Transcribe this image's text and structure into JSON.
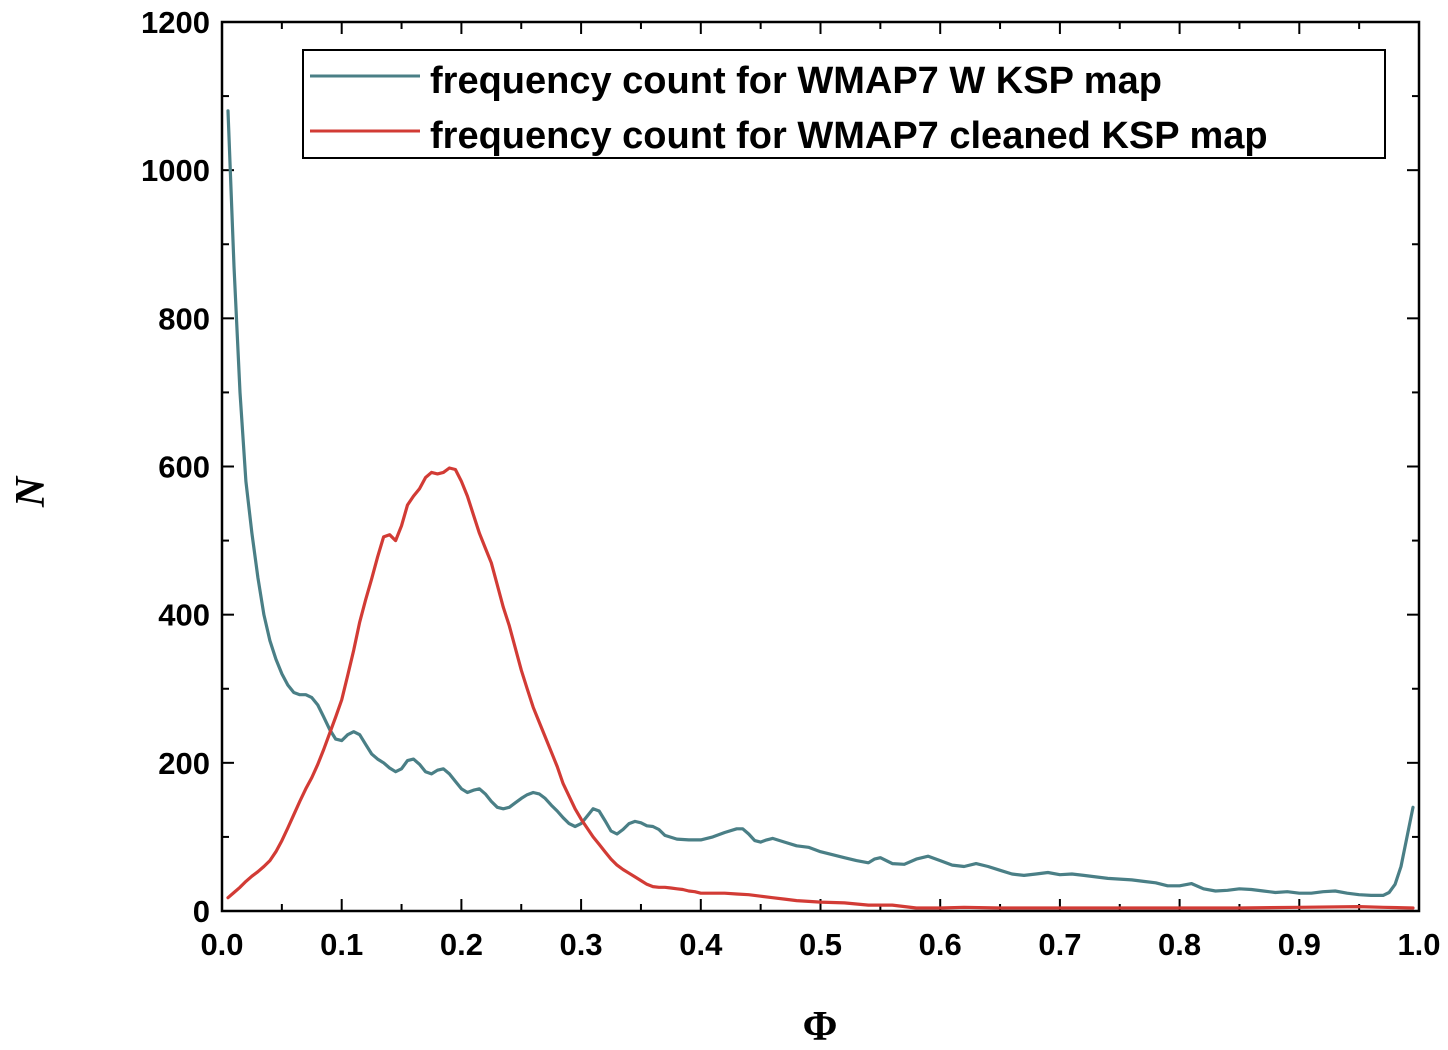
{
  "chart_data": {
    "type": "line",
    "title": "",
    "xlabel": "Φ",
    "ylabel": "N",
    "xlim": [
      0.0,
      1.0
    ],
    "ylim": [
      0,
      1200
    ],
    "xticks": [
      {
        "value": 0.0,
        "label": "0.0"
      },
      {
        "value": 0.1,
        "label": "0.1"
      },
      {
        "value": 0.2,
        "label": "0.2"
      },
      {
        "value": 0.3,
        "label": "0.3"
      },
      {
        "value": 0.4,
        "label": "0.4"
      },
      {
        "value": 0.5,
        "label": "0.5"
      },
      {
        "value": 0.6,
        "label": "0.6"
      },
      {
        "value": 0.7,
        "label": "0.7"
      },
      {
        "value": 0.8,
        "label": "0.8"
      },
      {
        "value": 0.9,
        "label": "0.9"
      },
      {
        "value": 1.0,
        "label": "1.0"
      }
    ],
    "yticks": [
      {
        "value": 0,
        "label": "0"
      },
      {
        "value": 200,
        "label": "200"
      },
      {
        "value": 400,
        "label": "400"
      },
      {
        "value": 600,
        "label": "600"
      },
      {
        "value": 800,
        "label": "800"
      },
      {
        "value": 1000,
        "label": "1000"
      },
      {
        "value": 1200,
        "label": "1200"
      }
    ],
    "legend_position": "top-right",
    "series": [
      {
        "name": "frequency count for WMAP7 W KSP map",
        "color": "#4a7f86",
        "x": [
          0.005,
          0.01,
          0.015,
          0.02,
          0.025,
          0.03,
          0.035,
          0.04,
          0.045,
          0.05,
          0.055,
          0.06,
          0.065,
          0.07,
          0.075,
          0.08,
          0.085,
          0.09,
          0.095,
          0.1,
          0.105,
          0.11,
          0.115,
          0.12,
          0.125,
          0.13,
          0.135,
          0.14,
          0.145,
          0.15,
          0.155,
          0.16,
          0.165,
          0.17,
          0.175,
          0.18,
          0.185,
          0.19,
          0.195,
          0.2,
          0.205,
          0.21,
          0.215,
          0.22,
          0.225,
          0.23,
          0.235,
          0.24,
          0.245,
          0.25,
          0.255,
          0.26,
          0.265,
          0.27,
          0.275,
          0.28,
          0.285,
          0.29,
          0.295,
          0.3,
          0.305,
          0.31,
          0.315,
          0.32,
          0.325,
          0.33,
          0.335,
          0.34,
          0.345,
          0.35,
          0.355,
          0.36,
          0.365,
          0.37,
          0.38,
          0.39,
          0.4,
          0.41,
          0.42,
          0.43,
          0.435,
          0.44,
          0.445,
          0.45,
          0.455,
          0.46,
          0.47,
          0.48,
          0.49,
          0.5,
          0.51,
          0.52,
          0.53,
          0.54,
          0.545,
          0.55,
          0.56,
          0.57,
          0.58,
          0.59,
          0.6,
          0.61,
          0.62,
          0.63,
          0.64,
          0.65,
          0.66,
          0.67,
          0.68,
          0.69,
          0.7,
          0.71,
          0.72,
          0.73,
          0.74,
          0.75,
          0.76,
          0.77,
          0.78,
          0.79,
          0.8,
          0.81,
          0.82,
          0.83,
          0.84,
          0.85,
          0.86,
          0.87,
          0.88,
          0.89,
          0.9,
          0.91,
          0.92,
          0.93,
          0.94,
          0.95,
          0.96,
          0.97,
          0.975,
          0.98,
          0.985,
          0.99,
          0.995
        ],
        "y": [
          1080,
          870,
          700,
          580,
          510,
          450,
          400,
          365,
          340,
          320,
          305,
          295,
          292,
          292,
          288,
          278,
          262,
          245,
          232,
          230,
          238,
          242,
          238,
          225,
          212,
          205,
          200,
          193,
          188,
          192,
          203,
          205,
          198,
          188,
          185,
          190,
          192,
          185,
          175,
          165,
          160,
          163,
          165,
          158,
          148,
          140,
          138,
          140,
          146,
          152,
          157,
          160,
          158,
          152,
          143,
          135,
          126,
          118,
          114,
          118,
          128,
          138,
          135,
          122,
          108,
          104,
          110,
          118,
          121,
          119,
          115,
          114,
          110,
          102,
          97,
          96,
          96,
          100,
          106,
          111,
          111,
          104,
          95,
          93,
          96,
          98,
          93,
          88,
          86,
          80,
          76,
          72,
          68,
          65,
          70,
          72,
          64,
          63,
          70,
          74,
          68,
          62,
          60,
          64,
          60,
          55,
          50,
          48,
          50,
          52,
          49,
          50,
          48,
          46,
          44,
          43,
          42,
          40,
          38,
          34,
          34,
          37,
          30,
          27,
          28,
          30,
          29,
          27,
          25,
          26,
          24,
          24,
          26,
          27,
          24,
          22,
          21,
          21,
          25,
          36,
          60,
          100,
          140
        ]
      },
      {
        "name": "frequency count for WMAP7 cleaned KSP map",
        "color": "#d23b35",
        "x": [
          0.005,
          0.01,
          0.015,
          0.02,
          0.025,
          0.03,
          0.035,
          0.04,
          0.045,
          0.05,
          0.055,
          0.06,
          0.065,
          0.07,
          0.075,
          0.08,
          0.085,
          0.09,
          0.095,
          0.1,
          0.105,
          0.11,
          0.115,
          0.12,
          0.125,
          0.13,
          0.135,
          0.14,
          0.145,
          0.15,
          0.155,
          0.16,
          0.165,
          0.17,
          0.175,
          0.18,
          0.185,
          0.19,
          0.195,
          0.2,
          0.205,
          0.21,
          0.215,
          0.22,
          0.225,
          0.23,
          0.235,
          0.24,
          0.245,
          0.25,
          0.255,
          0.26,
          0.265,
          0.27,
          0.275,
          0.28,
          0.285,
          0.29,
          0.295,
          0.3,
          0.305,
          0.31,
          0.315,
          0.32,
          0.325,
          0.33,
          0.335,
          0.34,
          0.345,
          0.35,
          0.355,
          0.36,
          0.365,
          0.37,
          0.375,
          0.38,
          0.385,
          0.39,
          0.395,
          0.4,
          0.41,
          0.42,
          0.43,
          0.44,
          0.45,
          0.46,
          0.47,
          0.48,
          0.49,
          0.5,
          0.52,
          0.54,
          0.56,
          0.58,
          0.6,
          0.62,
          0.65,
          0.7,
          0.75,
          0.8,
          0.85,
          0.9,
          0.95,
          0.97,
          0.995
        ],
        "y": [
          18,
          25,
          32,
          40,
          47,
          53,
          60,
          68,
          80,
          95,
          112,
          130,
          148,
          165,
          180,
          198,
          218,
          240,
          262,
          285,
          318,
          352,
          390,
          420,
          448,
          478,
          505,
          508,
          500,
          520,
          548,
          560,
          570,
          585,
          592,
          590,
          592,
          598,
          596,
          580,
          560,
          535,
          510,
          490,
          470,
          440,
          410,
          385,
          355,
          325,
          300,
          275,
          255,
          235,
          215,
          195,
          172,
          155,
          138,
          124,
          112,
          100,
          90,
          80,
          70,
          62,
          56,
          51,
          46,
          41,
          36,
          33,
          32,
          32,
          31,
          30,
          29,
          27,
          26,
          24,
          24,
          24,
          23,
          22,
          20,
          18,
          16,
          14,
          13,
          12,
          11,
          8,
          8,
          4,
          4,
          5,
          4,
          4,
          4,
          4,
          4,
          5,
          6,
          5,
          4
        ]
      }
    ]
  }
}
